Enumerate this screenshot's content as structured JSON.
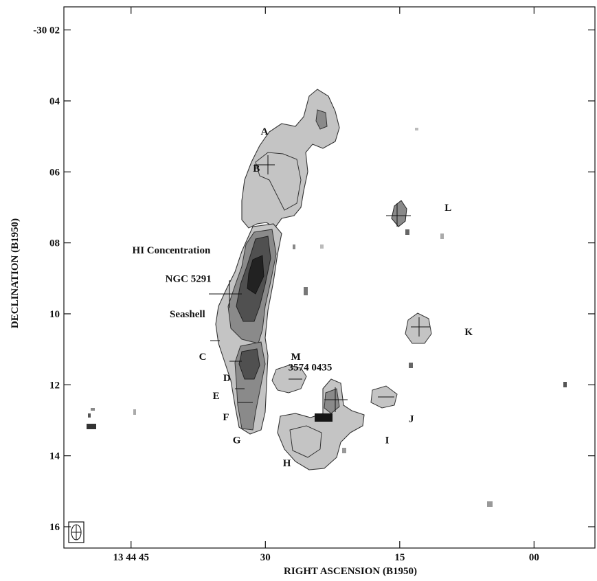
{
  "chart_data": {
    "type": "contour",
    "xlabel": "RIGHT ASCENSION (B1950)",
    "ylabel": "DECLINATION (B1950)",
    "x_ticks": [
      {
        "label": "13 44 45",
        "value": 45
      },
      {
        "label": "30",
        "value": 30
      },
      {
        "label": "15",
        "value": 15
      },
      {
        "label": "00",
        "value": 0
      }
    ],
    "y_ticks": [
      {
        "label": "-30 02",
        "value": 2
      },
      {
        "label": "04",
        "value": 4
      },
      {
        "label": "06",
        "value": 6
      },
      {
        "label": "08",
        "value": 8
      },
      {
        "label": "10",
        "value": 10
      },
      {
        "label": "12",
        "value": 12
      },
      {
        "label": "14",
        "value": 14
      },
      {
        "label": "16",
        "value": 16
      }
    ],
    "xlim": [
      52.5,
      -6.8
    ],
    "ylim": [
      16.6,
      1.35
    ],
    "xlim_unit": "seconds of RA past 13h 44m",
    "ylim_unit": "arcminutes of Dec below -30 deg",
    "grayscale_levels": [
      "#c4c4c4",
      "#8a8a8a",
      "#505050",
      "#222222"
    ],
    "annotations": [
      {
        "id": "A",
        "text": "A",
        "ra": 30.1,
        "dec": 4.85
      },
      {
        "id": "B",
        "text": "B",
        "ra": 31.0,
        "dec": 5.9
      },
      {
        "id": "L",
        "text": "L",
        "ra": 9.6,
        "dec": 7.0
      },
      {
        "id": "hi",
        "text": "HI Concentration",
        "ra": 40.5,
        "dec": 8.2
      },
      {
        "id": "ngc",
        "text": "NGC 5291",
        "ra": 38.6,
        "dec": 9.0
      },
      {
        "id": "seashell",
        "text": "Seashell",
        "ra": 38.7,
        "dec": 10.0
      },
      {
        "id": "K",
        "text": "K",
        "ra": 7.3,
        "dec": 10.5
      },
      {
        "id": "C",
        "text": "C",
        "ra": 37.0,
        "dec": 11.2
      },
      {
        "id": "M",
        "text": "M",
        "ra": 26.6,
        "dec": 11.2
      },
      {
        "id": "src3574",
        "text": "3574 0435",
        "ra": 25.0,
        "dec": 11.5
      },
      {
        "id": "D",
        "text": "D",
        "ra": 34.3,
        "dec": 11.8
      },
      {
        "id": "E",
        "text": "E",
        "ra": 35.5,
        "dec": 12.3
      },
      {
        "id": "F",
        "text": "F",
        "ra": 34.4,
        "dec": 12.9
      },
      {
        "id": "J",
        "text": "J",
        "ra": 13.7,
        "dec": 12.95
      },
      {
        "id": "G",
        "text": "G",
        "ra": 33.2,
        "dec": 13.55
      },
      {
        "id": "I",
        "text": "I",
        "ra": 16.4,
        "dec": 13.55
      },
      {
        "id": "H",
        "text": "H",
        "ra": 27.6,
        "dec": 14.2
      }
    ]
  }
}
